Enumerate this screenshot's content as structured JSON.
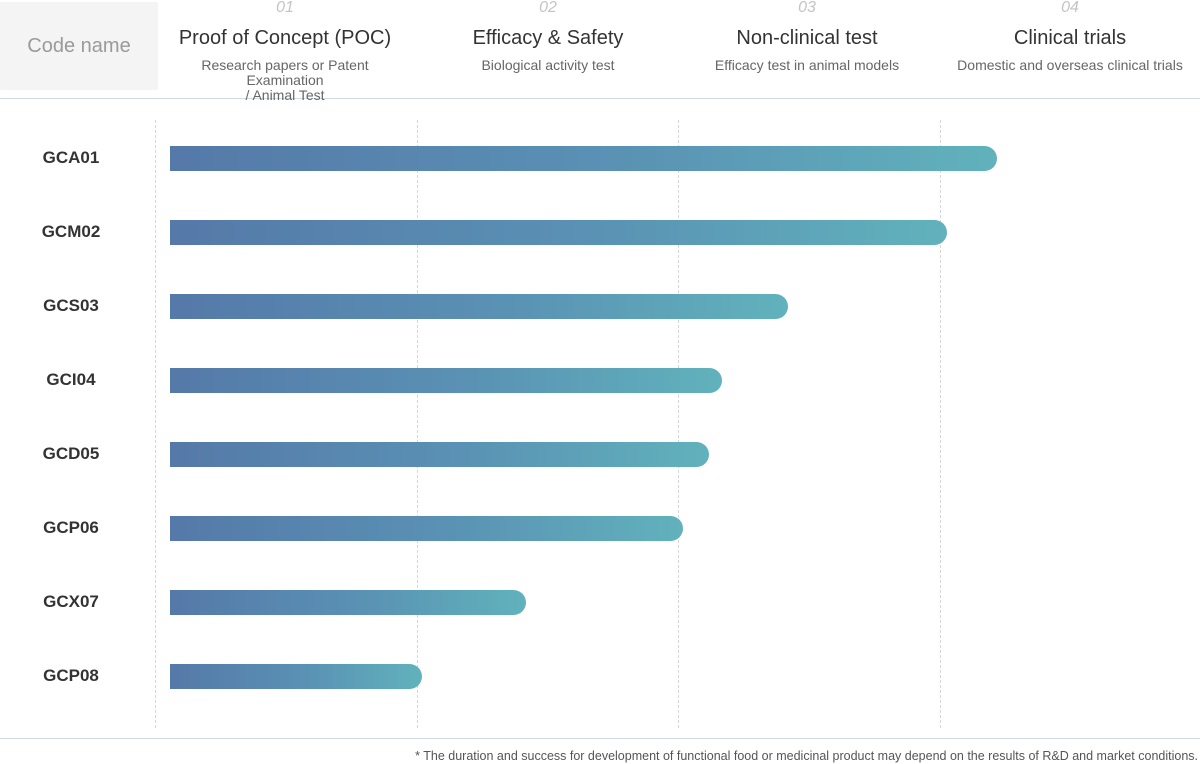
{
  "header": {
    "code_name_label": "Code name",
    "stages": [
      {
        "num": "01",
        "title": "Proof of Concept (POC)",
        "sub": "Research papers or Patent Examination\n/ Animal Test"
      },
      {
        "num": "02",
        "title": "Efficacy & Safety",
        "sub": "Biological activity test"
      },
      {
        "num": "03",
        "title": "Non-clinical test",
        "sub": "Efficacy  test in animal models"
      },
      {
        "num": "04",
        "title": "Clinical trials",
        "sub": "Domestic and overseas clinical trials"
      }
    ]
  },
  "chart_data": {
    "type": "bar",
    "orientation": "horizontal",
    "categories": [
      "GCA01",
      "GCM02",
      "GCS03",
      "GCI04",
      "GCD05",
      "GCP06",
      "GCX07",
      "GCP08"
    ],
    "values": [
      3.22,
      3.03,
      2.42,
      2.17,
      2.12,
      2.02,
      1.42,
      1.02
    ],
    "xlim": [
      0,
      4
    ],
    "x_axis_stages": [
      "Proof of Concept (POC)",
      "Efficacy & Safety",
      "Non-clinical test",
      "Clinical trials"
    ],
    "grid": true,
    "colors": {
      "bar_start": "#5579a9",
      "bar_end": "#61b2bc"
    }
  },
  "footnote": "* The duration and success for development of functional food or medicinal product may depend on the results of R&D and market conditions."
}
